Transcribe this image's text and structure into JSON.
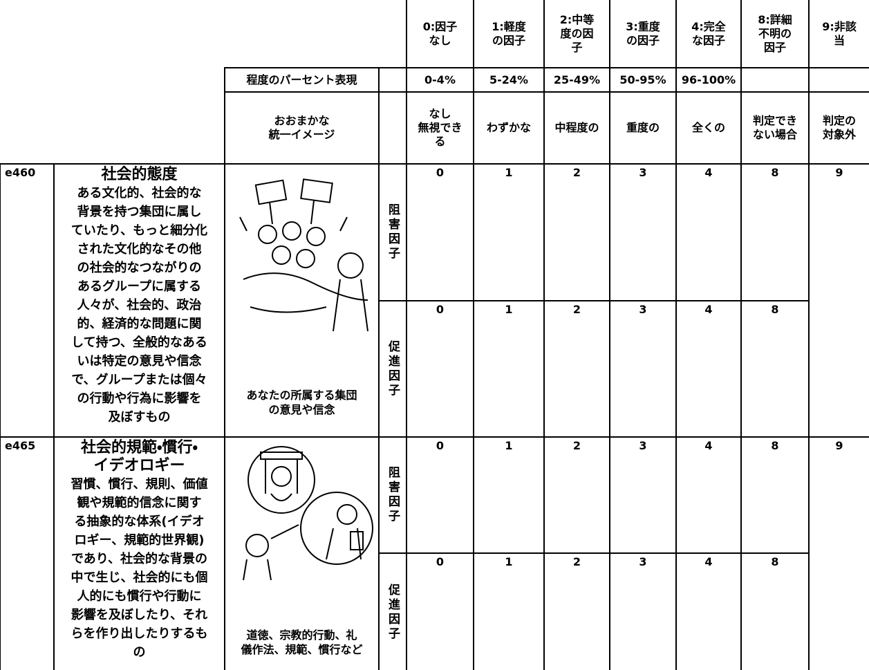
{
  "header": {
    "columns": [
      "0:因子\nなし",
      "1:軽度\nの因子",
      "2:中等\n度の因\n子",
      "3:重度\nの因子",
      "4:完全\nな因子",
      "8:詳細\n不明の\n因子",
      "9:非該\n当"
    ]
  },
  "percent_row": {
    "label": "程度のパーセント表現",
    "values": [
      "0-4%",
      "5-24%",
      "25-49%",
      "50-95%",
      "96-100%"
    ]
  },
  "image_row": {
    "label": "おおまかな\n統一イメージ",
    "values": [
      "なし\n無視でき\nる",
      "わずかな",
      "中程度の",
      "重度の",
      "全くの",
      "判定でき\nない場合",
      "判定の\n対象外"
    ]
  },
  "items": [
    {
      "code": "e460",
      "title": "社会的態度",
      "description": "ある文化的、社会的な\n背景を持つ集団に属し\nていたり、もっと細分化\nされた文化的なその他\nの社会的なつながりの\nあるグループに属する\n人々が、社会的、政治\n的、経済的な問題に関\nして持つ、全般的なある\nいは特定の意見や信念\nで、グループまたは個々\nの行動や行為に影響を\n及ぼすもの",
      "caption": "あなたの所属する集団\nの意見や信念",
      "barrier": {
        "label": "阻害因子",
        "scores": [
          0,
          1,
          2,
          3,
          4,
          8,
          9
        ]
      },
      "facilitator": {
        "label": "促進因子",
        "scores": [
          0,
          1,
          2,
          3,
          4,
          8
        ]
      }
    },
    {
      "code": "e465",
      "title": "社会的規範・慣行・\nイデオロギー",
      "description": "習慣、慣行、規則、価値\n観や規範的信念に関す\nる抽象的な体系(イデオ\nロギー、規範的世界観)\nであり、社会的な背景の\n中で生じ、社会的にも個\n人的にも慣行や行動に\n影響を及ぼしたり、それ\nらを作り出したりするも\nの",
      "caption": "道徳、宗教的行動、礼\n儀作法、規範、慣行など",
      "barrier": {
        "label": "阻害因子",
        "scores": [
          0,
          1,
          2,
          3,
          4,
          8,
          9
        ]
      },
      "facilitator": {
        "label": "促進因子",
        "scores": [
          0,
          1,
          2,
          3,
          4,
          8
        ]
      }
    }
  ]
}
